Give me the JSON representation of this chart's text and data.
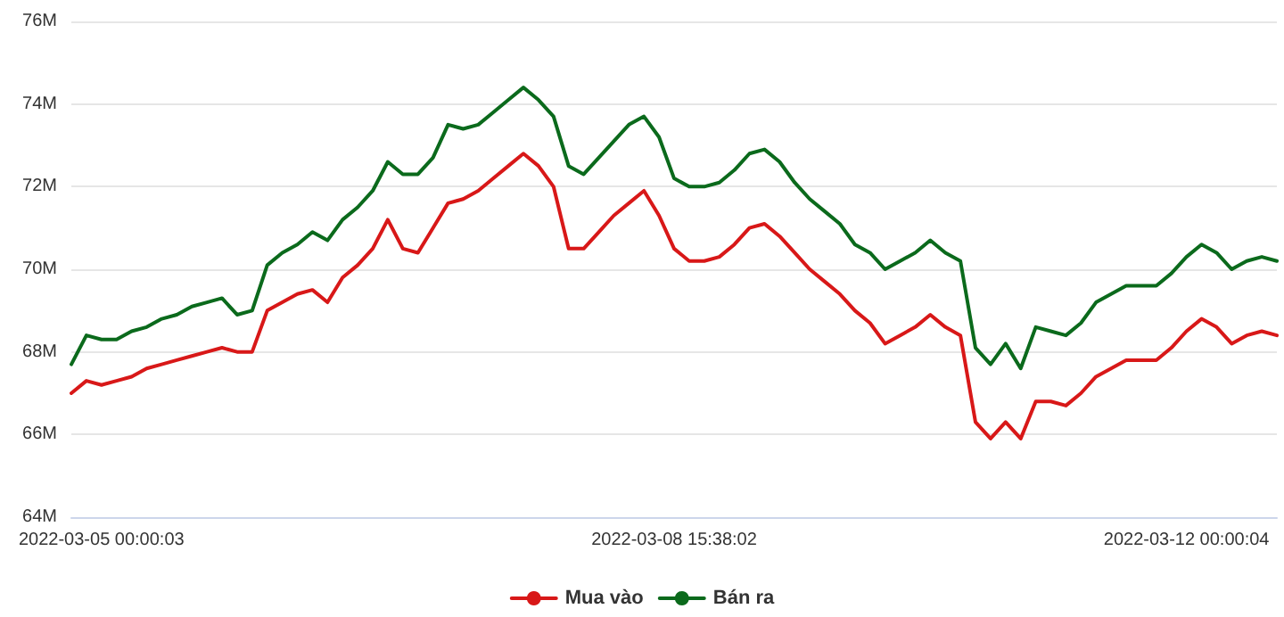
{
  "chart_data": {
    "type": "line",
    "categories": [
      null,
      null,
      "2022-03-05 00:00:03",
      null,
      null,
      null,
      null,
      null,
      null,
      null,
      null,
      null,
      null,
      null,
      null,
      null,
      null,
      null,
      null,
      null,
      null,
      null,
      null,
      null,
      null,
      null,
      null,
      null,
      null,
      null,
      null,
      null,
      null,
      null,
      null,
      null,
      null,
      null,
      null,
      null,
      "2022-03-08 15:38:02",
      null,
      null,
      null,
      null,
      null,
      null,
      null,
      null,
      null,
      null,
      null,
      null,
      null,
      null,
      null,
      null,
      null,
      null,
      null,
      null,
      null,
      null,
      null,
      null,
      null,
      null,
      null,
      null,
      null,
      null,
      null,
      null,
      null,
      "2022-03-12 00:00:04",
      null,
      null,
      null,
      null,
      null,
      null
    ],
    "series": [
      {
        "name": "Mua vào",
        "color": "#d81818",
        "values": [
          67.0,
          67.3,
          67.2,
          67.3,
          67.4,
          67.6,
          67.7,
          67.8,
          67.9,
          68.0,
          68.1,
          68.0,
          68.0,
          69.0,
          69.2,
          69.4,
          69.5,
          69.2,
          69.8,
          70.1,
          70.5,
          71.2,
          70.5,
          70.4,
          71.0,
          71.6,
          71.7,
          71.9,
          72.2,
          72.5,
          72.8,
          72.5,
          72.0,
          70.5,
          70.5,
          70.9,
          71.3,
          71.6,
          71.9,
          71.3,
          70.5,
          70.2,
          70.2,
          70.3,
          70.6,
          71.0,
          71.1,
          70.8,
          70.4,
          70.0,
          69.7,
          69.4,
          69.0,
          68.7,
          68.2,
          68.4,
          68.6,
          68.9,
          68.6,
          68.4,
          66.3,
          65.9,
          66.3,
          65.9,
          66.8,
          66.8,
          66.7,
          67.0,
          67.4,
          67.6,
          67.8,
          67.8,
          67.8,
          68.1,
          68.5,
          68.8,
          68.6,
          68.2,
          68.4,
          68.5,
          68.4
        ]
      },
      {
        "name": "Bán ra",
        "color": "#0b6a1c",
        "values": [
          67.7,
          68.4,
          68.3,
          68.3,
          68.5,
          68.6,
          68.8,
          68.9,
          69.1,
          69.2,
          69.3,
          68.9,
          69.0,
          70.1,
          70.4,
          70.6,
          70.9,
          70.7,
          71.2,
          71.5,
          71.9,
          72.6,
          72.3,
          72.3,
          72.7,
          73.5,
          73.4,
          73.5,
          73.8,
          74.1,
          74.4,
          74.1,
          73.7,
          72.5,
          72.3,
          72.7,
          73.1,
          73.5,
          73.7,
          73.2,
          72.2,
          72.0,
          72.0,
          72.1,
          72.4,
          72.8,
          72.9,
          72.6,
          72.1,
          71.7,
          71.4,
          71.1,
          70.6,
          70.4,
          70.0,
          70.2,
          70.4,
          70.7,
          70.4,
          70.2,
          68.1,
          67.7,
          68.2,
          67.6,
          68.6,
          68.5,
          68.4,
          68.7,
          69.2,
          69.4,
          69.6,
          69.6,
          69.6,
          69.9,
          70.3,
          70.6,
          70.4,
          70.0,
          70.2,
          70.3,
          70.2
        ]
      }
    ],
    "ylim": [
      64,
      76
    ],
    "yticks": [
      {
        "value": 64,
        "label": "64M"
      },
      {
        "value": 66,
        "label": "66M"
      },
      {
        "value": 68,
        "label": "68M"
      },
      {
        "value": 70,
        "label": "70M"
      },
      {
        "value": 72,
        "label": "72M"
      },
      {
        "value": 74,
        "label": "74M"
      },
      {
        "value": 76,
        "label": "76M"
      }
    ],
    "grid": "y",
    "legend": "bottom",
    "marker": "none",
    "line_style": "solid"
  }
}
